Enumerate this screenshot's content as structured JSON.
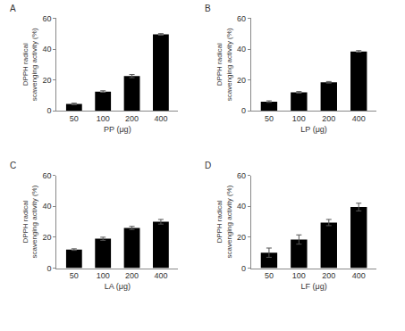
{
  "chart_data": [
    {
      "type": "bar",
      "title": "A",
      "categories": [
        "50",
        "100",
        "200",
        "400"
      ],
      "values": [
        4.5,
        12.5,
        22.5,
        49.5
      ],
      "errors": [
        0.5,
        0.5,
        1,
        0.5
      ],
      "color": "#000000",
      "ylim": [
        0,
        60
      ],
      "yticks": [
        0,
        20,
        40,
        60
      ],
      "x_label": "PP (μg)",
      "y_label": "DPPH radical\nscavenging activity (%)"
    },
    {
      "type": "bar",
      "title": "B",
      "categories": [
        "50",
        "100",
        "200",
        "400"
      ],
      "values": [
        6,
        12,
        18.5,
        38.5
      ],
      "errors": [
        0.5,
        0.5,
        0.5,
        0.5
      ],
      "color": "#000000",
      "ylim": [
        0,
        60
      ],
      "yticks": [
        0,
        20,
        40,
        60
      ],
      "x_label": "LP (μg)",
      "y_label": "DPPH radical\nscavenging activity (%)"
    },
    {
      "type": "bar",
      "title": "C",
      "categories": [
        "50",
        "100",
        "200",
        "400"
      ],
      "values": [
        12,
        19,
        26,
        30
      ],
      "errors": [
        0.5,
        1,
        1,
        1.5
      ],
      "color": "#000000",
      "ylim": [
        0,
        60
      ],
      "yticks": [
        0,
        20,
        40,
        60
      ],
      "x_label": "LA (μg)",
      "y_label": "DPPH radical\nscavenging activity (%)"
    },
    {
      "type": "bar",
      "title": "D",
      "categories": [
        "50",
        "100",
        "200",
        "400"
      ],
      "values": [
        10,
        18.5,
        29.5,
        39.5
      ],
      "errors": [
        3,
        3,
        2,
        2.5
      ],
      "color": "#000000",
      "ylim": [
        0,
        60
      ],
      "yticks": [
        0,
        20,
        40,
        60
      ],
      "x_label": "LF (μg)",
      "y_label": "DPPH radical\nscavenging activity (%)"
    }
  ]
}
